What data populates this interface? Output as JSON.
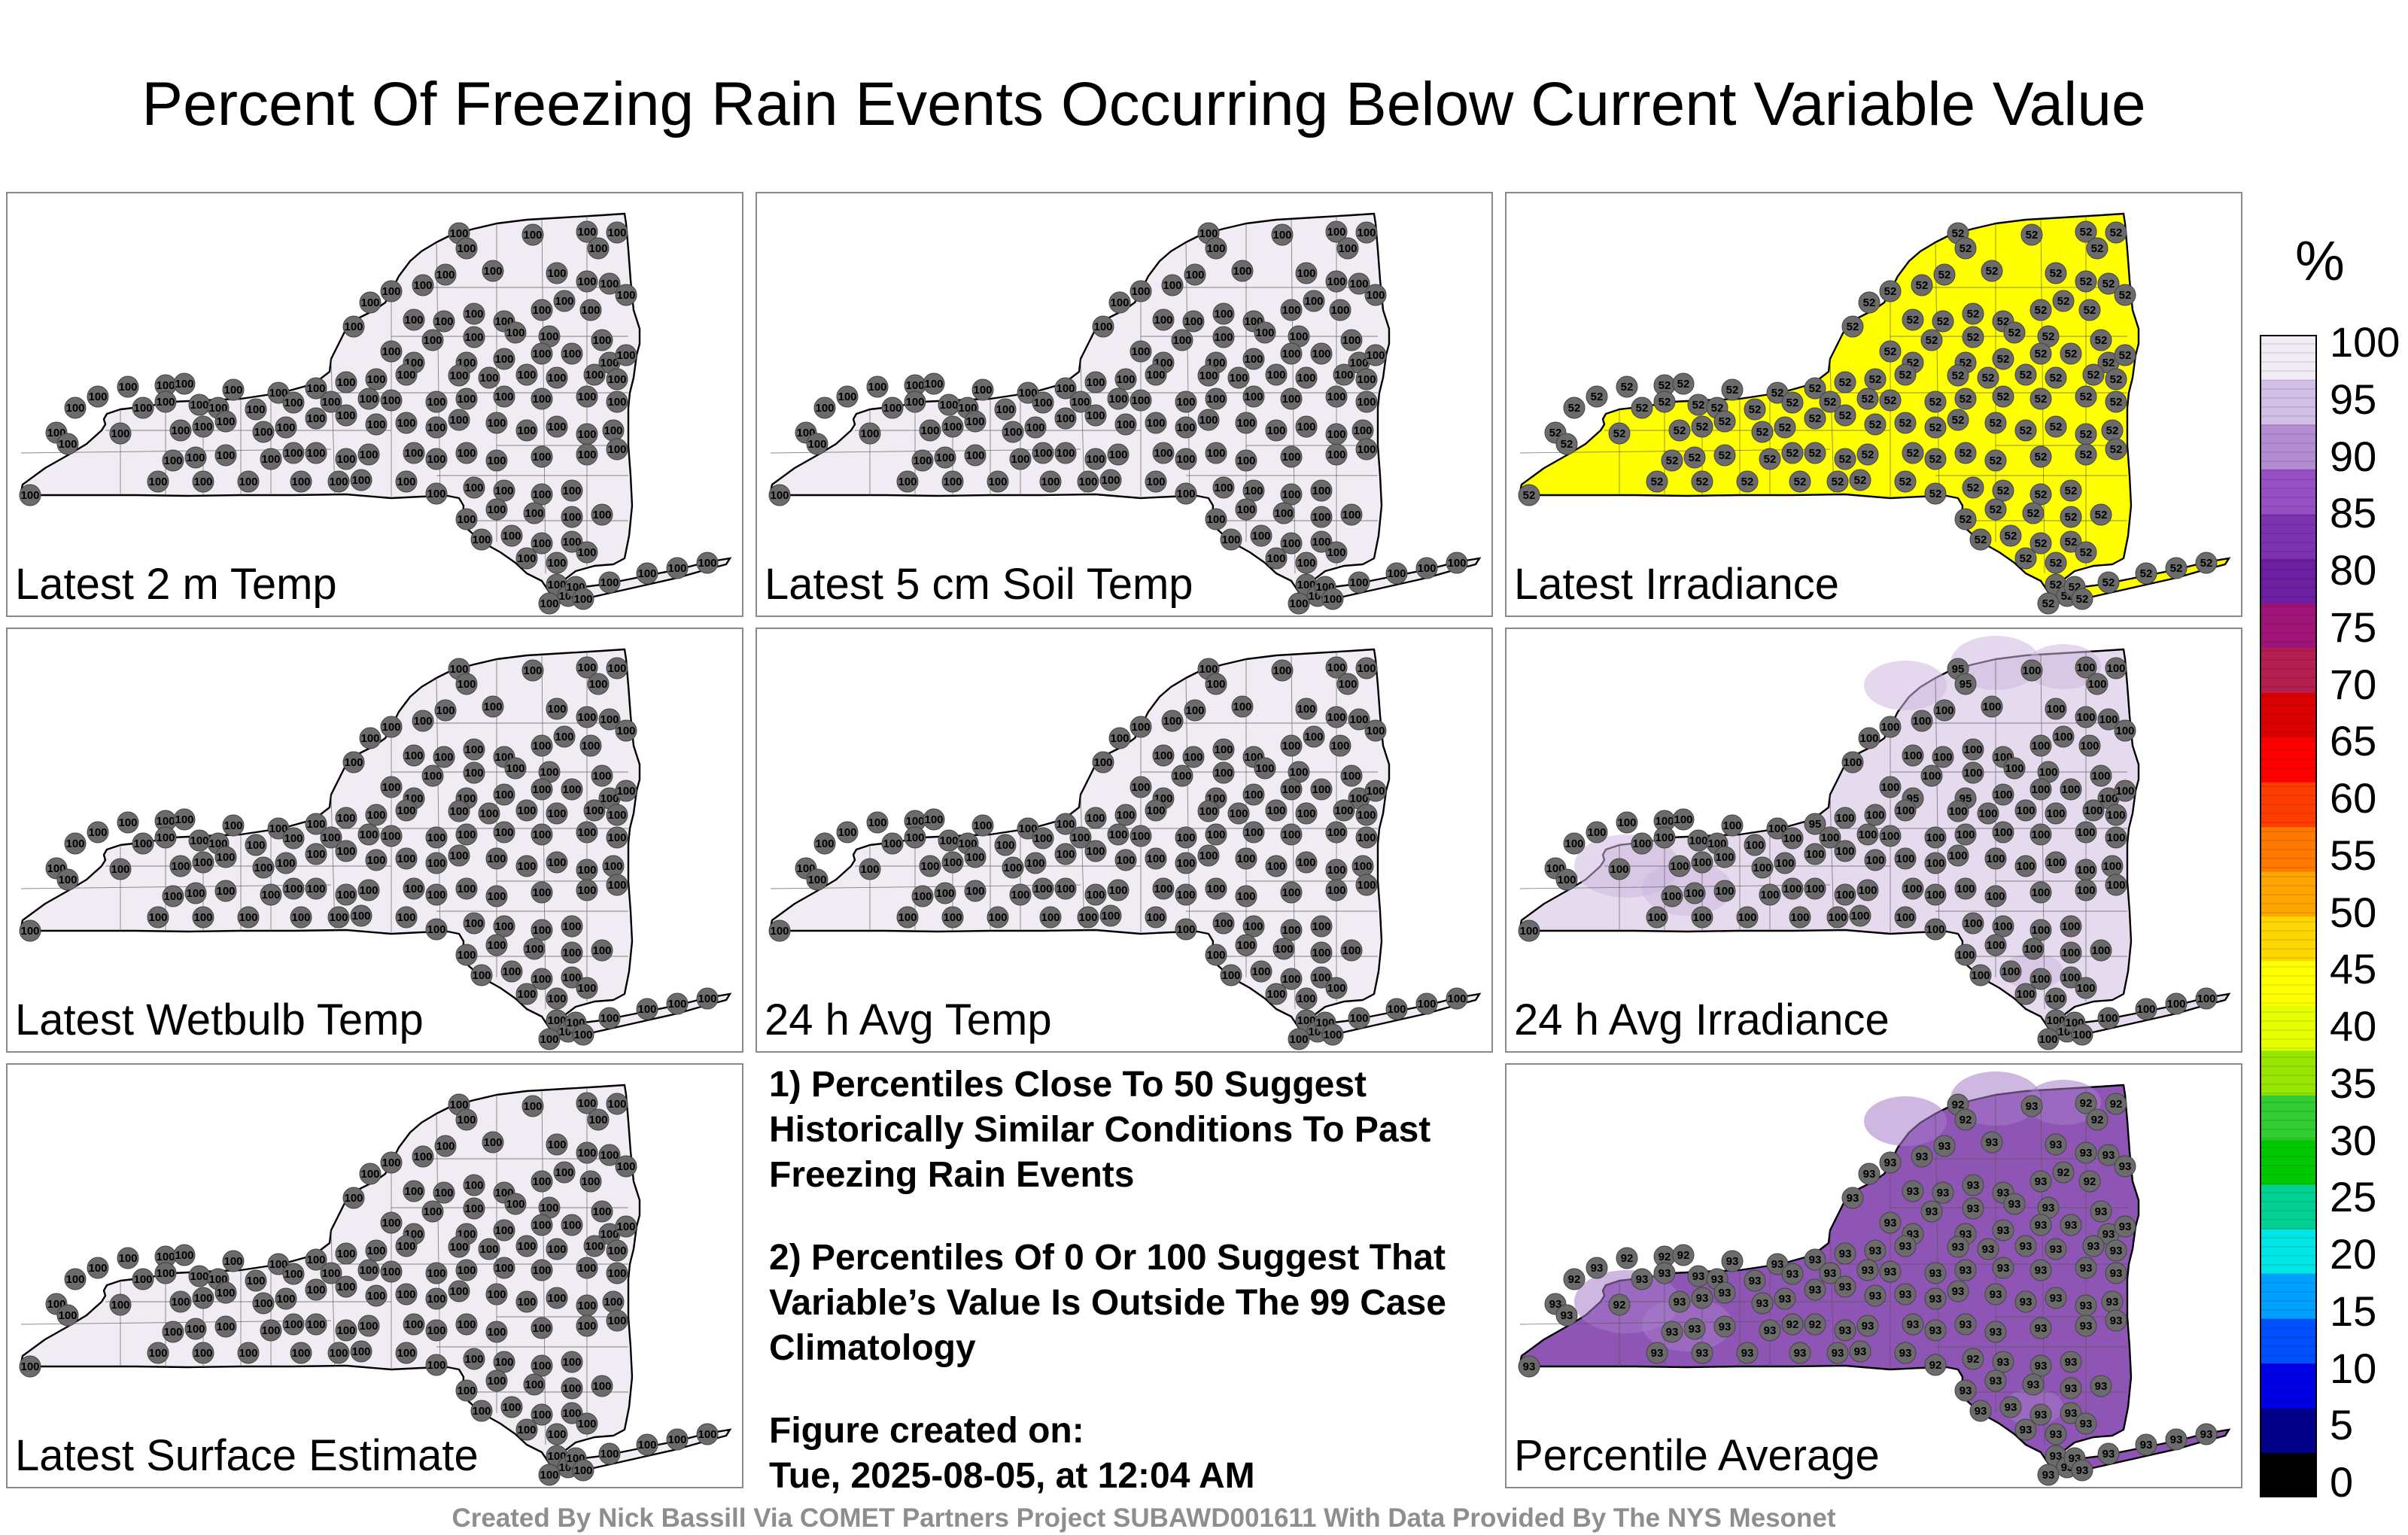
{
  "title": "Percent Of Freezing Rain Events Occurring Below Current Variable Value",
  "panels": [
    {
      "id": "p1",
      "label": "Latest 2 m Temp",
      "fill": "#f1ecf4",
      "marker": "100",
      "marker_alt": "100"
    },
    {
      "id": "p2",
      "label": "Latest 5 cm Soil Temp",
      "fill": "#f1ecf4",
      "marker": "100",
      "marker_alt": "100"
    },
    {
      "id": "p3",
      "label": "Latest Irradiance",
      "fill": "#ffff00",
      "marker": "52",
      "marker_alt": "52"
    },
    {
      "id": "p4",
      "label": "Latest Wetbulb Temp",
      "fill": "#f1ecf4",
      "marker": "100",
      "marker_alt": "100"
    },
    {
      "id": "p5",
      "label": "24 h Avg Temp",
      "fill": "#f1ecf4",
      "marker": "100",
      "marker_alt": "100"
    },
    {
      "id": "p6",
      "label": "24 h Avg Irradiance",
      "fill": "#e6dbee",
      "marker": "100",
      "marker_alt": "95"
    },
    {
      "id": "p7",
      "label": "Latest Surface Estimate",
      "fill": "#f1ecf4",
      "marker": "100",
      "marker_alt": "100"
    },
    {
      "id": "p8",
      "label": "Percentile Average",
      "fill": "#8e55b5",
      "marker": "93",
      "marker_alt": "92"
    }
  ],
  "notes": {
    "note1": "1) Percentiles Close To 50 Suggest Historically Similar Conditions To Past Freezing Rain Events",
    "note2": "2) Percentiles Of 0 Or 100 Suggest That Variable’s Value Is Outside The 99 Case Climatology",
    "created_label": "Figure created on:",
    "created_date": "Tue, 2025-08-05, at 12:04 AM"
  },
  "legend": {
    "unit": "%",
    "ticks": [
      "100",
      "95",
      "90",
      "85",
      "80",
      "75",
      "70",
      "65",
      "60",
      "55",
      "50",
      "45",
      "40",
      "35",
      "30",
      "25",
      "20",
      "15",
      "10",
      "5",
      "0"
    ],
    "colors": [
      "#000000",
      "#00008b",
      "#0000e6",
      "#0050ff",
      "#00a0ff",
      "#00e6e6",
      "#00d296",
      "#00c800",
      "#32cd32",
      "#96e600",
      "#e6ff00",
      "#ffff00",
      "#ffd700",
      "#ffa500",
      "#ff7800",
      "#ff3c00",
      "#ff0000",
      "#dc0000",
      "#b41e50",
      "#a01478",
      "#6e1ea0",
      "#7d32af",
      "#9650c3",
      "#b48cd2",
      "#d2bee6",
      "#f1ecf4"
    ]
  },
  "footer": "Created By Nick Bassill Via COMET Partners Project SUBAWD001611 With Data Provided By The NYS Mesonet"
}
